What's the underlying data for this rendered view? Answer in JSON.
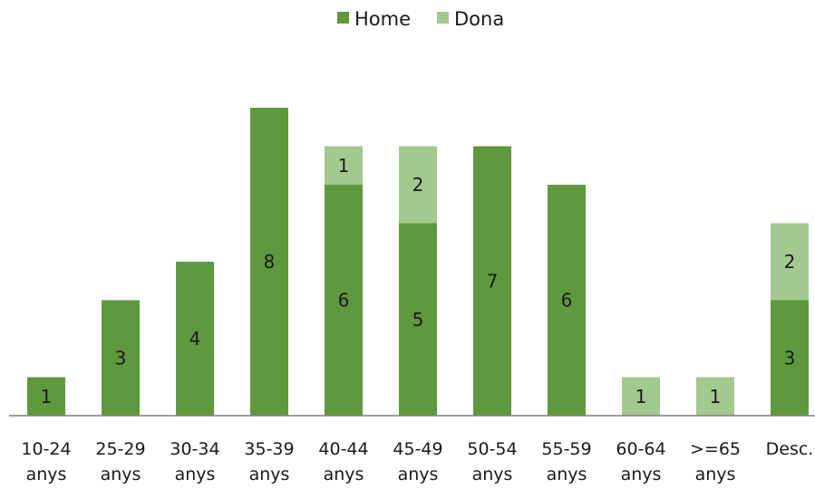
{
  "chart_data": {
    "type": "bar",
    "stacked": true,
    "categories": [
      [
        "10-24",
        "anys"
      ],
      [
        "25-29",
        "anys"
      ],
      [
        "30-34",
        "anys"
      ],
      [
        "35-39",
        "anys"
      ],
      [
        "40-44",
        "anys"
      ],
      [
        "45-49",
        "anys"
      ],
      [
        "50-54",
        "anys"
      ],
      [
        "55-59",
        "anys"
      ],
      [
        "60-64",
        "anys"
      ],
      [
        ">=65",
        "anys"
      ],
      [
        "Desc."
      ]
    ],
    "series": [
      {
        "name": "Home",
        "color": "#5f993e",
        "values": [
          1,
          3,
          4,
          8,
          6,
          5,
          7,
          6,
          0,
          0,
          3
        ]
      },
      {
        "name": "Dona",
        "color": "#a3c98e",
        "values": [
          0,
          0,
          0,
          0,
          1,
          2,
          0,
          0,
          1,
          1,
          2
        ]
      }
    ],
    "ylim": [
      0,
      8
    ],
    "grid": false,
    "legend_position": "top-center",
    "title": "",
    "xlabel": "",
    "ylabel": ""
  }
}
